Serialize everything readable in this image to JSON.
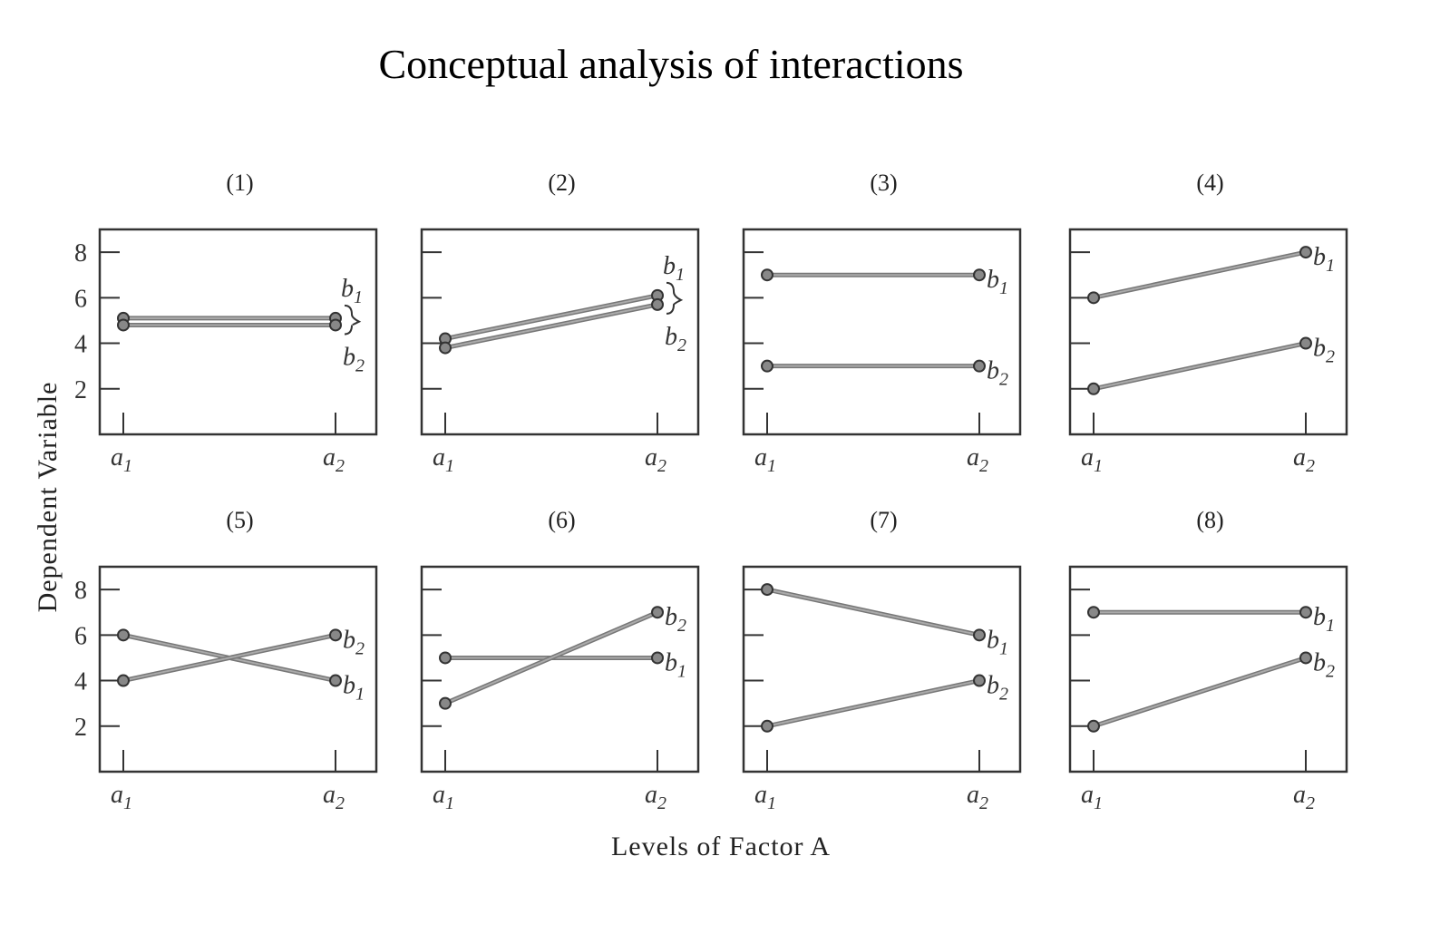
{
  "title": "Conceptual analysis of interactions",
  "y_axis_title": "Dependent  Variable",
  "x_axis_title": "Levels of Factor A",
  "chart_data": [
    {
      "type": "line",
      "panel": "(1)",
      "categories": [
        "a1",
        "a2"
      ],
      "ylim": [
        0,
        9
      ],
      "yticks": [
        2,
        4,
        6,
        8
      ],
      "series": [
        {
          "name": "b1",
          "values": [
            5.1,
            5.1
          ]
        },
        {
          "name": "b2",
          "values": [
            4.8,
            4.8
          ]
        }
      ],
      "brace": true
    },
    {
      "type": "line",
      "panel": "(2)",
      "categories": [
        "a1",
        "a2"
      ],
      "ylim": [
        0,
        9
      ],
      "yticks": [
        2,
        4,
        6,
        8
      ],
      "series": [
        {
          "name": "b1",
          "values": [
            4.2,
            6.1
          ]
        },
        {
          "name": "b2",
          "values": [
            3.8,
            5.7
          ]
        }
      ],
      "brace": true
    },
    {
      "type": "line",
      "panel": "(3)",
      "categories": [
        "a1",
        "a2"
      ],
      "ylim": [
        0,
        9
      ],
      "yticks": [
        2,
        4,
        6,
        8
      ],
      "series": [
        {
          "name": "b1",
          "values": [
            7,
            7
          ]
        },
        {
          "name": "b2",
          "values": [
            3,
            3
          ]
        }
      ]
    },
    {
      "type": "line",
      "panel": "(4)",
      "categories": [
        "a1",
        "a2"
      ],
      "ylim": [
        0,
        9
      ],
      "yticks": [
        2,
        4,
        6,
        8
      ],
      "series": [
        {
          "name": "b1",
          "values": [
            6,
            8
          ]
        },
        {
          "name": "b2",
          "values": [
            2,
            4
          ]
        }
      ]
    },
    {
      "type": "line",
      "panel": "(5)",
      "categories": [
        "a1",
        "a2"
      ],
      "ylim": [
        0,
        9
      ],
      "yticks": [
        2,
        4,
        6,
        8
      ],
      "series": [
        {
          "name": "b1",
          "values": [
            6,
            4
          ]
        },
        {
          "name": "b2",
          "values": [
            4,
            6
          ]
        }
      ]
    },
    {
      "type": "line",
      "panel": "(6)",
      "categories": [
        "a1",
        "a2"
      ],
      "ylim": [
        0,
        9
      ],
      "yticks": [
        2,
        4,
        6,
        8
      ],
      "series": [
        {
          "name": "b1",
          "values": [
            5,
            5
          ]
        },
        {
          "name": "b2",
          "values": [
            3,
            7
          ]
        }
      ]
    },
    {
      "type": "line",
      "panel": "(7)",
      "categories": [
        "a1",
        "a2"
      ],
      "ylim": [
        0,
        9
      ],
      "yticks": [
        2,
        4,
        6,
        8
      ],
      "series": [
        {
          "name": "b1",
          "values": [
            8,
            6
          ]
        },
        {
          "name": "b2",
          "values": [
            2,
            4
          ]
        }
      ]
    },
    {
      "type": "line",
      "panel": "(8)",
      "categories": [
        "a1",
        "a2"
      ],
      "ylim": [
        0,
        9
      ],
      "yticks": [
        2,
        4,
        6,
        8
      ],
      "series": [
        {
          "name": "b1",
          "values": [
            7,
            7
          ]
        },
        {
          "name": "b2",
          "values": [
            2,
            5
          ]
        }
      ]
    }
  ]
}
